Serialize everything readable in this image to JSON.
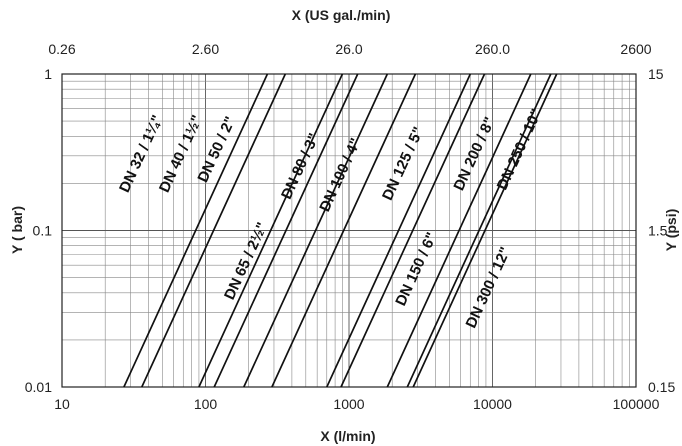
{
  "chart_data": {
    "type": "line",
    "x_scale": "log",
    "y_scale": "log",
    "grid": true,
    "xlabel": "X (l/min)",
    "ylabel": "Y ( bar)",
    "x2label": "X (US gal./min)",
    "y2label": "Y (psi)",
    "xlim": [
      10,
      100000
    ],
    "ylim": [
      0.01,
      1
    ],
    "x_ticks": [
      "10",
      "100",
      "1000",
      "10000",
      "100000"
    ],
    "y_ticks": [
      "0.01",
      "0.1",
      "1"
    ],
    "x2_ticks": [
      "0.26",
      "2.60",
      "26.0",
      "260.0",
      "2600"
    ],
    "y2_ticks": [
      "0.15",
      "1.5",
      "15"
    ],
    "series": [
      {
        "name": "DN 32 / 1¼\"",
        "x": [
          27,
          270
        ],
        "y": [
          0.01,
          1
        ]
      },
      {
        "name": "DN 40 / 1½\"",
        "x": [
          36,
          360
        ],
        "y": [
          0.01,
          1
        ]
      },
      {
        "name": "DN 50 / 2\"",
        "x": [
          90,
          900
        ],
        "y": [
          0.01,
          1
        ]
      },
      {
        "name": "DN 65 / 2½\"",
        "x": [
          115,
          1150
        ],
        "y": [
          0.01,
          1
        ]
      },
      {
        "name": "DN 80 / 3\"",
        "x": [
          185,
          1850
        ],
        "y": [
          0.01,
          1
        ]
      },
      {
        "name": "DN 100 / 4\"",
        "x": [
          290,
          2900
        ],
        "y": [
          0.01,
          1
        ]
      },
      {
        "name": "DN 125 / 5\"",
        "x": [
          700,
          7000
        ],
        "y": [
          0.01,
          1
        ]
      },
      {
        "name": "DN 150 / 6\"",
        "x": [
          880,
          8800
        ],
        "y": [
          0.01,
          1
        ]
      },
      {
        "name": "DN 200 / 8\"",
        "x": [
          1850,
          18500
        ],
        "y": [
          0.01,
          1
        ]
      },
      {
        "name": "DN 250 / 10\"",
        "x": [
          2550,
          25500
        ],
        "y": [
          0.01,
          1
        ]
      },
      {
        "name": "DN 300 / 12\"",
        "x": [
          2800,
          28000
        ],
        "y": [
          0.01,
          1
        ]
      }
    ],
    "labels": [
      {
        "text": "DN 32 / 1¼\"",
        "x": 38,
        "y": 0.3
      },
      {
        "text": "DN 40 / 1½\"",
        "x": 72,
        "y": 0.3
      },
      {
        "text": "DN 50 / 2\"",
        "x": 128,
        "y": 0.32
      },
      {
        "text": "DN 65 / 2½\"",
        "x": 205,
        "y": 0.062
      },
      {
        "text": "DN 80 / 3\"",
        "x": 490,
        "y": 0.25
      },
      {
        "text": "DN 100 / 4\"",
        "x": 930,
        "y": 0.22
      },
      {
        "text": "DN 125 / 5\"",
        "x": 2550,
        "y": 0.26
      },
      {
        "text": "DN 150 / 6\"",
        "x": 3150,
        "y": 0.055
      },
      {
        "text": "DN 200 / 8\"",
        "x": 8000,
        "y": 0.3
      },
      {
        "text": "DN 250 / 10\"",
        "x": 16500,
        "y": 0.32
      },
      {
        "text": "DN 300 / 12\"",
        "x": 10000,
        "y": 0.042
      }
    ]
  }
}
